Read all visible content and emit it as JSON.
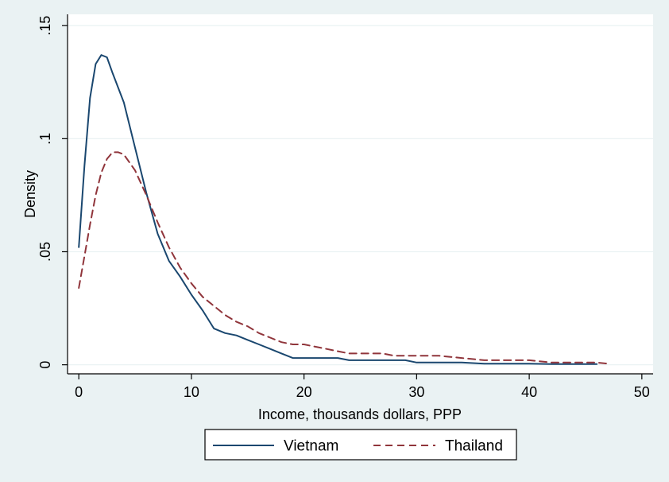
{
  "colors": {
    "background": "#eaf2f3",
    "plot_background": "#ffffff",
    "grid": "#eaf2f3",
    "vietnam": "#1a476f",
    "thailand": "#90353b"
  },
  "chart_data": {
    "type": "line",
    "title": "",
    "xlabel": "Income, thousands dollars, PPP",
    "ylabel": "Density",
    "xlim": [
      -1,
      51
    ],
    "ylim": [
      -0.004,
      0.155
    ],
    "xticks": [
      0,
      10,
      20,
      30,
      40,
      50
    ],
    "xtick_labels": [
      "0",
      "10",
      "20",
      "30",
      "40",
      "50"
    ],
    "yticks": [
      0,
      0.05,
      0.1,
      0.15
    ],
    "ytick_labels": [
      "0",
      ".05",
      ".1",
      ".15"
    ],
    "grid": true,
    "legend_position": "bottom",
    "series": [
      {
        "name": "Vietnam",
        "style": "solid",
        "x": [
          0,
          0.5,
          1,
          1.5,
          2,
          2.5,
          3,
          4,
          5,
          6,
          7,
          8,
          9,
          10,
          11,
          12,
          13,
          14,
          15,
          16,
          17,
          18,
          19,
          20,
          21,
          22,
          23,
          24,
          25,
          26,
          27,
          28,
          29,
          30,
          31,
          32,
          34,
          36,
          38,
          40,
          42,
          44,
          46
        ],
        "y": [
          0.052,
          0.088,
          0.118,
          0.133,
          0.137,
          0.136,
          0.129,
          0.116,
          0.096,
          0.076,
          0.058,
          0.046,
          0.039,
          0.031,
          0.024,
          0.016,
          0.014,
          0.013,
          0.011,
          0.009,
          0.007,
          0.005,
          0.003,
          0.003,
          0.003,
          0.003,
          0.003,
          0.002,
          0.002,
          0.002,
          0.002,
          0.002,
          0.002,
          0.001,
          0.001,
          0.001,
          0.001,
          0.0005,
          0.0005,
          0.0005,
          0.0003,
          0.0003,
          0.0003
        ]
      },
      {
        "name": "Thailand",
        "style": "dashed",
        "x": [
          0,
          0.5,
          1,
          1.5,
          2,
          2.5,
          3,
          3.5,
          4,
          5,
          6,
          7,
          8,
          9,
          10,
          11,
          12,
          13,
          14,
          15,
          16,
          17,
          18,
          19,
          20,
          21,
          22,
          23,
          24,
          25,
          26,
          27,
          28,
          29,
          30,
          31,
          32,
          34,
          36,
          38,
          40,
          42,
          44,
          46,
          47
        ],
        "y": [
          0.034,
          0.048,
          0.062,
          0.075,
          0.085,
          0.091,
          0.094,
          0.094,
          0.093,
          0.086,
          0.075,
          0.063,
          0.052,
          0.043,
          0.036,
          0.03,
          0.026,
          0.022,
          0.019,
          0.017,
          0.014,
          0.012,
          0.01,
          0.009,
          0.009,
          0.008,
          0.007,
          0.006,
          0.005,
          0.005,
          0.005,
          0.005,
          0.004,
          0.004,
          0.004,
          0.004,
          0.004,
          0.003,
          0.002,
          0.002,
          0.002,
          0.001,
          0.001,
          0.001,
          0.0005
        ]
      }
    ]
  }
}
